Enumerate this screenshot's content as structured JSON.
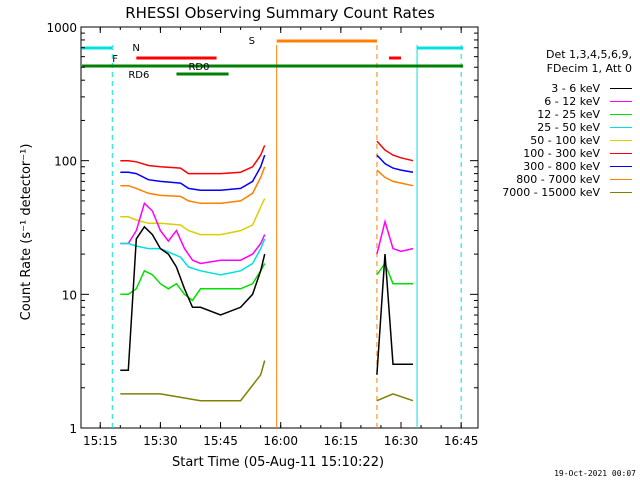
{
  "chart_data": {
    "type": "line",
    "title": "RHESSI Observing Summary Count Rates",
    "xlabel": "Start Time (05-Aug-11 15:10:22)",
    "ylabel": "Count Rate (s⁻¹ detector⁻¹)",
    "yscale": "log",
    "ylim": [
      1,
      1000
    ],
    "xlim_minutes": [
      15.17,
      16.82
    ],
    "x_tick_labels": [
      "15:15",
      "15:30",
      "15:45",
      "16:00",
      "16:15",
      "16:30",
      "16:45"
    ],
    "y_tick_labels": [
      "1",
      "10",
      "100",
      "1000"
    ],
    "legend_header": [
      "Det 1,3,4,5,6,9,",
      "FDecim 1, Att 0"
    ],
    "legend_entries": [
      {
        "label": "3 - 6 keV",
        "color": "#000000"
      },
      {
        "label": "6 - 12 keV",
        "color": "#ff00ff"
      },
      {
        "label": "12 - 25 keV",
        "color": "#00e000"
      },
      {
        "label": "25 - 50 keV",
        "color": "#00e0e0"
      },
      {
        "label": "50 - 100 keV",
        "color": "#d8d000"
      },
      {
        "label": "100 - 300 keV",
        "color": "#ff0000"
      },
      {
        "label": "300 - 800 keV",
        "color": "#0000ff"
      },
      {
        "label": "800 - 7000 keV",
        "color": "#ff8000"
      },
      {
        "label": "7000 - 15000 keV",
        "color": "#808000"
      }
    ],
    "flag_labels": {
      "N": "N",
      "F": "F",
      "S": "S",
      "RD0": "RD0",
      "RD6": "RD6"
    },
    "series": [
      {
        "name": "100 - 300 keV",
        "color": "#ff0000",
        "x": [
          "15:20",
          "15:21",
          "15:22",
          "15:24",
          "15:27",
          "15:30",
          "15:35",
          "15:37",
          "15:40",
          "15:45",
          "15:50",
          "15:53",
          "15:55",
          "15:56",
          "16:24",
          "16:26",
          "16:28",
          "16:30",
          "16:33"
        ],
        "y": [
          100,
          100,
          100,
          98,
          92,
          90,
          88,
          80,
          80,
          80,
          82,
          90,
          110,
          130,
          140,
          120,
          110,
          105,
          100
        ]
      },
      {
        "name": "300 - 800 keV",
        "color": "#0000ff",
        "x": [
          "15:20",
          "15:22",
          "15:24",
          "15:27",
          "15:30",
          "15:35",
          "15:37",
          "15:40",
          "15:45",
          "15:50",
          "15:53",
          "15:55",
          "15:56",
          "16:24",
          "16:26",
          "16:28",
          "16:30",
          "16:33"
        ],
        "y": [
          82,
          82,
          80,
          72,
          70,
          68,
          62,
          60,
          60,
          62,
          70,
          90,
          110,
          110,
          95,
          88,
          85,
          82
        ]
      },
      {
        "name": "800 - 7000 keV",
        "color": "#ff8000",
        "x": [
          "15:20",
          "15:22",
          "15:24",
          "15:27",
          "15:30",
          "15:35",
          "15:37",
          "15:40",
          "15:45",
          "15:50",
          "15:53",
          "15:55",
          "15:56",
          "16:24",
          "16:26",
          "16:28",
          "16:30",
          "16:33"
        ],
        "y": [
          65,
          65,
          62,
          57,
          55,
          54,
          50,
          48,
          48,
          50,
          57,
          75,
          90,
          85,
          75,
          70,
          68,
          65
        ]
      },
      {
        "name": "50 - 100 keV",
        "color": "#d8d000",
        "x": [
          "15:20",
          "15:22",
          "15:24",
          "15:27",
          "15:30",
          "15:35",
          "15:37",
          "15:40",
          "15:45",
          "15:50",
          "15:53",
          "15:55",
          "15:56"
        ],
        "y": [
          38,
          38,
          36,
          34,
          34,
          33,
          30,
          28,
          28,
          30,
          33,
          45,
          52
        ]
      },
      {
        "name": "6 - 12 keV",
        "color": "#ff00ff",
        "x": [
          "15:20",
          "15:22",
          "15:24",
          "15:26",
          "15:28",
          "15:30",
          "15:32",
          "15:34",
          "15:36",
          "15:38",
          "15:40",
          "15:45",
          "15:50",
          "15:53",
          "15:55",
          "15:56",
          "16:24",
          "16:26",
          "16:28",
          "16:30",
          "16:33"
        ],
        "y": [
          24,
          24,
          30,
          48,
          42,
          30,
          25,
          30,
          22,
          18,
          17,
          18,
          18,
          20,
          24,
          28,
          20,
          35,
          22,
          21,
          22
        ]
      },
      {
        "name": "25 - 50 keV",
        "color": "#00e0e0",
        "x": [
          "15:20",
          "15:22",
          "15:24",
          "15:27",
          "15:30",
          "15:35",
          "15:37",
          "15:40",
          "15:45",
          "15:50",
          "15:53",
          "15:55",
          "15:56"
        ],
        "y": [
          24,
          24,
          23,
          22,
          22,
          19,
          16,
          15,
          14,
          15,
          17,
          22,
          26
        ]
      },
      {
        "name": "12 - 25 keV",
        "color": "#00e000",
        "x": [
          "15:20",
          "15:22",
          "15:24",
          "15:26",
          "15:28",
          "15:30",
          "15:32",
          "15:34",
          "15:36",
          "15:38",
          "15:40",
          "15:45",
          "15:50",
          "15:53",
          "15:55",
          "15:56",
          "16:24",
          "16:26",
          "16:28",
          "16:30",
          "16:33"
        ],
        "y": [
          10,
          10,
          11,
          15,
          14,
          12,
          11,
          12,
          10,
          9,
          11,
          11,
          11,
          12,
          15,
          17,
          14,
          17,
          12,
          12,
          12
        ]
      },
      {
        "name": "3 - 6 keV",
        "color": "#000000",
        "x": [
          "15:20",
          "15:22",
          "15:24",
          "15:26",
          "15:28",
          "15:30",
          "15:32",
          "15:34",
          "15:36",
          "15:38",
          "15:40",
          "15:45",
          "15:50",
          "15:53",
          "15:55",
          "15:56",
          "16:24",
          "16:26",
          "16:28",
          "16:30",
          "16:33"
        ],
        "y": [
          2.7,
          2.7,
          26,
          32,
          28,
          22,
          20,
          16,
          11,
          8,
          8,
          7,
          8,
          10,
          15,
          20,
          2.5,
          20,
          3,
          3,
          3
        ]
      },
      {
        "name": "7000 - 15000 keV",
        "color": "#808000",
        "x": [
          "15:20",
          "15:30",
          "15:40",
          "15:50",
          "15:55",
          "15:56",
          "16:24",
          "16:28",
          "16:33"
        ],
        "y": [
          1.8,
          1.8,
          1.6,
          1.6,
          2.5,
          3.2,
          1.6,
          1.8,
          1.6
        ]
      }
    ],
    "time_bands": {
      "data_gap_minutes": [
        [
          15.9833,
          16.4
        ]
      ],
      "N_lines_minutes": [
        15.3,
        16.5667,
        16.75
      ]
    }
  },
  "footer": "19-Oct-2021 00:07"
}
